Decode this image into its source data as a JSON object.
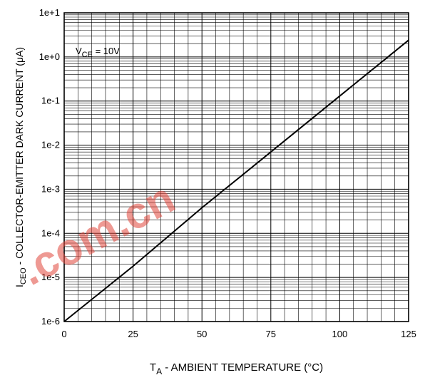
{
  "chart_data": {
    "type": "line",
    "title": "",
    "xlabel": {
      "main": "T",
      "sub": "A",
      "rest": " - AMBIENT TEMPERATURE (°C)"
    },
    "ylabel": {
      "main": "I",
      "sub": "CEO",
      "rest": " - COLLECTOR-EMITTER DARK CURRENT (μA)"
    },
    "xlim": [
      0,
      125
    ],
    "ylim": [
      1e-06,
      10
    ],
    "yscale": "log",
    "grid": true,
    "x_ticks": [
      0,
      25,
      50,
      75,
      100,
      125
    ],
    "x_tick_labels": [
      "0",
      "25",
      "50",
      "75",
      "100",
      "125"
    ],
    "y_ticks": [
      1e-06,
      1e-05,
      0.0001,
      0.001,
      0.01,
      0.1,
      1,
      10
    ],
    "y_tick_labels": [
      "1e-6",
      "1e-5",
      "1e-4",
      "1e-3",
      "1e-2",
      "1e-1",
      "1e+0",
      "1e+1"
    ],
    "annotation": {
      "main": "V",
      "sub": "CE",
      "rest": " = 10V"
    },
    "series": [
      {
        "x": [
          0,
          25,
          50,
          75,
          100,
          125
        ],
        "y": [
          1e-06,
          1.8e-05,
          0.00038,
          0.007,
          0.13,
          2.4
        ]
      }
    ]
  },
  "watermark": {
    "text": ".com.cn"
  }
}
